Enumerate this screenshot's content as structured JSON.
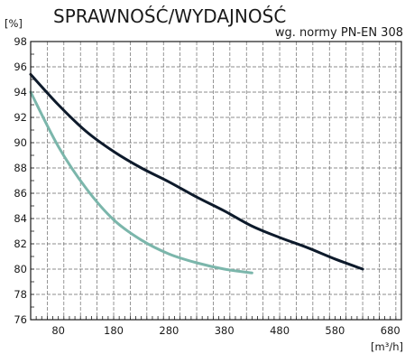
{
  "chart_data": {
    "type": "line",
    "title": "SPRAWNOŚĆ/WYDAJNOŚĆ",
    "subtitle": "wg. normy PN-EN 308",
    "ylabel": "[%]",
    "xlabel": "[m³/h]",
    "xlim": [
      30,
      700
    ],
    "ylim": [
      76,
      98
    ],
    "x_ticks": [
      80,
      180,
      280,
      380,
      480,
      580,
      680
    ],
    "y_ticks": [
      76,
      78,
      80,
      82,
      84,
      86,
      88,
      90,
      92,
      94,
      96,
      98
    ],
    "grid": true,
    "series": [
      {
        "color": "#0d1a2b",
        "points": [
          [
            30,
            95.4
          ],
          [
            80,
            93.0
          ],
          [
            130,
            90.9
          ],
          [
            180,
            89.3
          ],
          [
            230,
            88.0
          ],
          [
            280,
            86.9
          ],
          [
            330,
            85.7
          ],
          [
            380,
            84.6
          ],
          [
            430,
            83.4
          ],
          [
            480,
            82.5
          ],
          [
            530,
            81.7
          ],
          [
            580,
            80.8
          ],
          [
            630,
            80.0
          ]
        ]
      },
      {
        "color": "#7bb6ab",
        "points": [
          [
            30,
            94.0
          ],
          [
            80,
            89.7
          ],
          [
            130,
            86.4
          ],
          [
            180,
            83.9
          ],
          [
            230,
            82.3
          ],
          [
            280,
            81.2
          ],
          [
            330,
            80.5
          ],
          [
            380,
            80.0
          ],
          [
            430,
            79.7
          ]
        ]
      }
    ]
  }
}
